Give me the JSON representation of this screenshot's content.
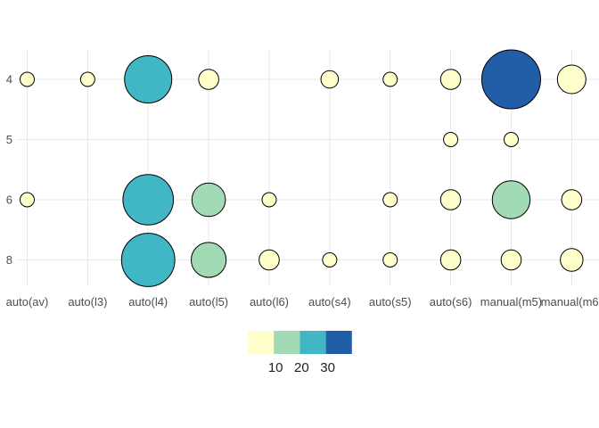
{
  "chart_data": {
    "type": "scatter",
    "subtype": "bubble-count",
    "title": "",
    "xlabel": "",
    "ylabel": "",
    "grid": true,
    "legend_position": "bottom",
    "x_axis": {
      "categories": [
        "auto(av)",
        "auto(l3)",
        "auto(l4)",
        "auto(l5)",
        "auto(l6)",
        "auto(s4)",
        "auto(s5)",
        "auto(s6)",
        "manual(m5)",
        "manual(m6)"
      ]
    },
    "y_axis": {
      "categories": [
        "4",
        "5",
        "6",
        "8"
      ]
    },
    "points": [
      {
        "x": "auto(av)",
        "y": "4",
        "n": 2
      },
      {
        "x": "auto(l3)",
        "y": "4",
        "n": 2
      },
      {
        "x": "auto(l4)",
        "y": "4",
        "n": 22
      },
      {
        "x": "auto(l5)",
        "y": "4",
        "n": 4
      },
      {
        "x": "auto(s4)",
        "y": "4",
        "n": 3
      },
      {
        "x": "auto(s5)",
        "y": "4",
        "n": 2
      },
      {
        "x": "auto(s6)",
        "y": "4",
        "n": 4
      },
      {
        "x": "manual(m5)",
        "y": "4",
        "n": 34
      },
      {
        "x": "manual(m6)",
        "y": "4",
        "n": 8
      },
      {
        "x": "auto(s6)",
        "y": "5",
        "n": 2
      },
      {
        "x": "manual(m5)",
        "y": "5",
        "n": 2
      },
      {
        "x": "auto(av)",
        "y": "6",
        "n": 2
      },
      {
        "x": "auto(l4)",
        "y": "6",
        "n": 25
      },
      {
        "x": "auto(l5)",
        "y": "6",
        "n": 11
      },
      {
        "x": "auto(l6)",
        "y": "6",
        "n": 2
      },
      {
        "x": "auto(s5)",
        "y": "6",
        "n": 2
      },
      {
        "x": "auto(s6)",
        "y": "6",
        "n": 4
      },
      {
        "x": "manual(m5)",
        "y": "6",
        "n": 14
      },
      {
        "x": "manual(m6)",
        "y": "6",
        "n": 4
      },
      {
        "x": "auto(l4)",
        "y": "8",
        "n": 28
      },
      {
        "x": "auto(l5)",
        "y": "8",
        "n": 12
      },
      {
        "x": "auto(l6)",
        "y": "8",
        "n": 4
      },
      {
        "x": "auto(s4)",
        "y": "8",
        "n": 2
      },
      {
        "x": "auto(s5)",
        "y": "8",
        "n": 2
      },
      {
        "x": "auto(s6)",
        "y": "8",
        "n": 4
      },
      {
        "x": "manual(m5)",
        "y": "8",
        "n": 4
      },
      {
        "x": "manual(m6)",
        "y": "8",
        "n": 5
      }
    ],
    "color_scale": {
      "palette": "YlGnBu-binned",
      "bins": [
        {
          "upto": 10,
          "color": "#FFFFCC"
        },
        {
          "upto": 20,
          "color": "#A1DAB4"
        },
        {
          "upto": 30,
          "color": "#41B6C4"
        },
        {
          "upto": 999,
          "color": "#225EA8"
        }
      ],
      "tick_labels": [
        "10",
        "20",
        "30"
      ]
    },
    "style": {
      "background": "#FFFFFF",
      "grid_color": "#E8E8E8",
      "point_stroke": "#000000",
      "axis_text_color": "#4D4D4D",
      "legend_text_color": "#222222"
    }
  }
}
